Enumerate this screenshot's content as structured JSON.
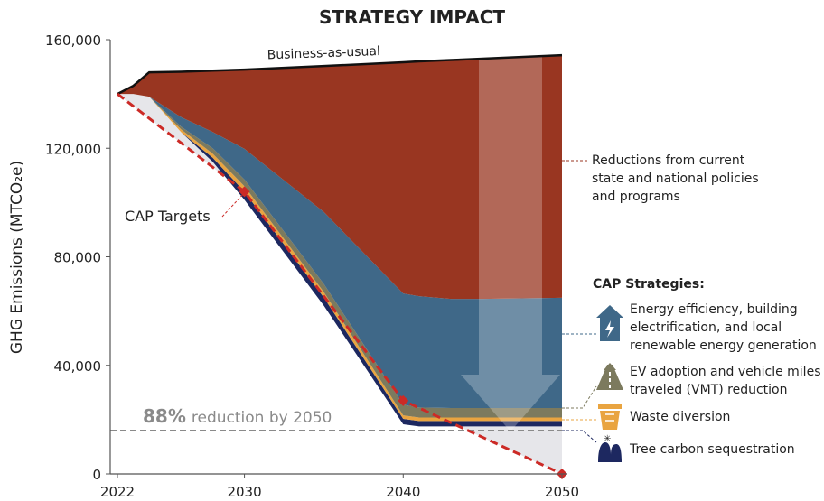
{
  "chart_data": {
    "type": "area",
    "title": "STRATEGY IMPACT",
    "y_label": "GHG Emissions (MTCO₂e)",
    "x": [
      2022,
      2023,
      2024,
      2026,
      2028,
      2030,
      2035,
      2040,
      2041,
      2043,
      2045,
      2050
    ],
    "xlim": [
      2022,
      2050
    ],
    "xticks": [
      2022,
      2030,
      2040,
      2050
    ],
    "ylim": [
      0,
      160000
    ],
    "yticks": [
      0,
      {
        "value": 40000,
        "label": "40,000"
      },
      {
        "value": 80000,
        "label": "80,000"
      },
      {
        "value": 120000,
        "label": "120,000"
      },
      {
        "value": 160000,
        "label": "160,000"
      }
    ],
    "stacked": true,
    "series": [
      {
        "color": "#e6e6ea",
        "values": [
          140000,
          140000,
          139000,
          126000,
          115000,
          101000,
          62000,
          18300,
          17500,
          17500,
          17500,
          17500
        ]
      },
      {
        "name": "Tree carbon sequestration",
        "color": "#1d2860",
        "values": [
          0,
          0,
          0,
          0,
          1500,
          3000,
          3000,
          2000,
          2000,
          2000,
          2000,
          2000
        ]
      },
      {
        "name": "Waste diversion",
        "color": "#e9a440",
        "values": [
          0,
          0,
          0,
          1000,
          1500,
          2000,
          2000,
          1300,
          1300,
          1300,
          1300,
          1300
        ]
      },
      {
        "name": "EV adoption and vehicle miles traveled (VMT) reduction",
        "color": "#7c7a5e",
        "values": [
          0,
          0,
          0,
          1000,
          2000,
          2500,
          3000,
          3900,
          3700,
          3500,
          3500,
          3500
        ]
      },
      {
        "name": "Energy efficiency, building electrification, and local renewable energy generation",
        "color": "#3f6888",
        "values": [
          0,
          0,
          0,
          3500,
          6000,
          11300,
          26500,
          41000,
          41000,
          40200,
          40200,
          40600
        ]
      },
      {
        "name": "Reductions from current state and national policies and programs",
        "color": "#993621",
        "values": [
          0,
          3000,
          9000,
          16700,
          22600,
          29200,
          53800,
          85200,
          86500,
          88000,
          88500,
          89400
        ]
      }
    ],
    "line": {
      "name": "Business-as-usual",
      "color": "#111111",
      "values": [
        140000,
        143000,
        148000,
        148200,
        148600,
        149000,
        150300,
        151700,
        152000,
        152500,
        153000,
        154300
      ]
    },
    "targets": {
      "name": "CAP Targets",
      "color": "#cc2a26",
      "x": [
        2022,
        2030,
        2040,
        2050
      ],
      "values": [
        140000,
        104000,
        27000,
        0
      ]
    },
    "reference": {
      "value": 16000,
      "percent": "88%",
      "text": "reduction by 2050",
      "color": "#8a8a8a"
    },
    "legend_title": "CAP Strategies:"
  }
}
